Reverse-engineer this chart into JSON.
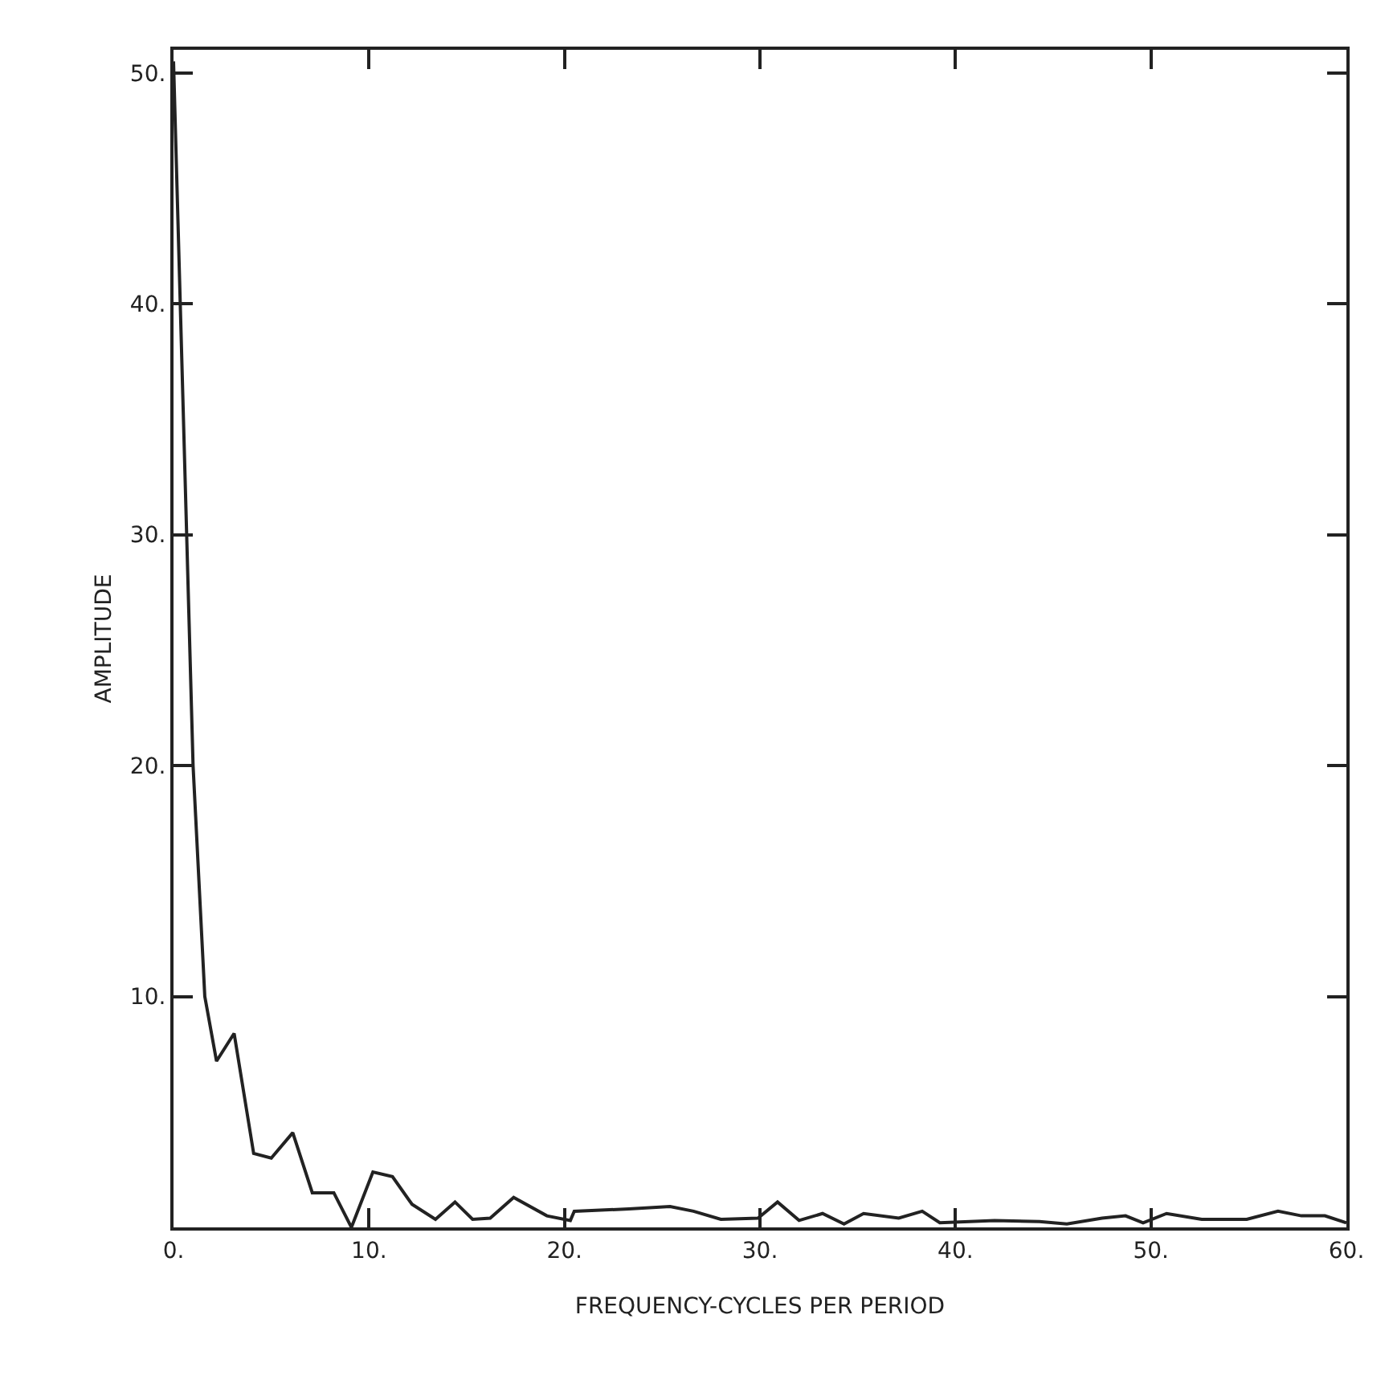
{
  "chart_data": {
    "type": "line",
    "xlabel": "FREQUENCY-CYCLES PER PERIOD",
    "ylabel": "AMPLITUDE",
    "x": [
      0,
      1,
      1.6,
      2.2,
      3.1,
      4.1,
      5,
      6.1,
      7.1,
      8.2,
      9.1,
      10.2,
      11.2,
      12.2,
      13.4,
      14.4,
      15.3,
      16.2,
      17.4,
      19.1,
      20.3,
      20.5,
      23.3,
      25.4,
      26.6,
      28,
      29.9,
      30.9,
      32,
      33.2,
      34.3,
      35.3,
      37.1,
      38.3,
      39.2,
      42,
      44.3,
      45.7,
      47.5,
      48.7,
      49.6,
      50.8,
      52.6,
      54.9,
      56.5,
      57.7,
      58.9,
      60
    ],
    "series": [
      {
        "color": "#222222",
        "values": [
          50.5,
          20,
          10,
          7.2,
          8.4,
          3.2,
          3.0,
          4.1,
          1.5,
          1.5,
          0,
          2.4,
          2.2,
          1.0,
          0.35,
          1.1,
          0.35,
          0.4,
          1.3,
          0.5,
          0.3,
          0.7,
          0.8,
          0.9,
          0.7,
          0.35,
          0.4,
          1.1,
          0.3,
          0.6,
          0.15,
          0.6,
          0.4,
          0.7,
          0.2,
          0.3,
          0.25,
          0.15,
          0.4,
          0.5,
          0.2,
          0.6,
          0.35,
          0.35,
          0.7,
          0.5,
          0.5,
          0.2
        ]
      }
    ],
    "xlim": [
      0,
      60
    ],
    "ylim": [
      0,
      51
    ],
    "xticks": [
      {
        "value": 0,
        "label": "0."
      },
      {
        "value": 10,
        "label": "10."
      },
      {
        "value": 20,
        "label": "20."
      },
      {
        "value": 30,
        "label": "30."
      },
      {
        "value": 40,
        "label": "40."
      },
      {
        "value": 50,
        "label": "50."
      },
      {
        "value": 60,
        "label": "60."
      }
    ],
    "yticks": [
      {
        "value": 10,
        "label": "10."
      },
      {
        "value": 20,
        "label": "20."
      },
      {
        "value": 30,
        "label": "30."
      },
      {
        "value": 40,
        "label": "40."
      },
      {
        "value": 50,
        "label": "50."
      }
    ],
    "marker": "none",
    "line_style": "solid"
  }
}
